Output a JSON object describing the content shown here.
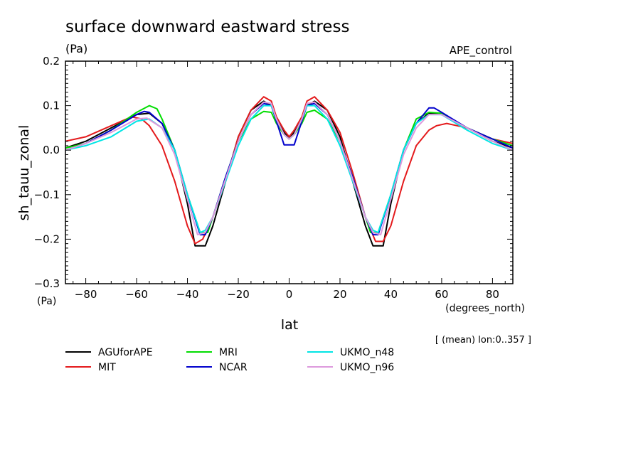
{
  "chart_data": {
    "type": "line",
    "title": "surface downward eastward stress",
    "units": "(Pa)",
    "experiment": "APE_control",
    "ylabel": "sh_tauu_zonal",
    "xlabel": "lat",
    "x_units": "(degrees_north)",
    "y_units": "(Pa)",
    "note": "[ (mean) lon:0..357 ]",
    "xlim": [
      -88,
      88
    ],
    "ylim": [
      -0.3,
      0.2
    ],
    "x_ticks": [
      -80,
      -60,
      -40,
      -20,
      0,
      20,
      40,
      60,
      80
    ],
    "x_tick_labels": [
      "−80",
      "−60",
      "−40",
      "−20",
      "0",
      "20",
      "40",
      "60",
      "80"
    ],
    "y_ticks": [
      0.2,
      0.1,
      0.0,
      -0.1,
      -0.2,
      -0.3
    ],
    "y_tick_labels": [
      "0.2",
      "0.1",
      "0.0",
      "−0.1",
      "−0.2",
      "−0.3"
    ],
    "grid": false,
    "legend_position": "bottom",
    "series": [
      {
        "name": "AGUforAPE",
        "color": "#000000",
        "x": [
          -88,
          -80,
          -70,
          -60,
          -55,
          -50,
          -45,
          -40,
          -37,
          -33,
          -30,
          -25,
          -20,
          -15,
          -10,
          -7,
          -5,
          -2,
          0,
          2,
          5,
          7,
          10,
          15,
          20,
          25,
          30,
          33,
          37,
          40,
          45,
          50,
          55,
          60,
          70,
          80,
          88
        ],
        "y": [
          0.005,
          0.02,
          0.05,
          0.08,
          0.083,
          0.06,
          0.0,
          -0.12,
          -0.215,
          -0.215,
          -0.17,
          -0.07,
          0.03,
          0.09,
          0.11,
          0.1,
          0.07,
          0.04,
          0.025,
          0.04,
          0.07,
          0.1,
          0.11,
          0.09,
          0.03,
          -0.07,
          -0.17,
          -0.215,
          -0.215,
          -0.12,
          0.0,
          0.06,
          0.083,
          0.08,
          0.05,
          0.02,
          0.005
        ]
      },
      {
        "name": "MIT",
        "color": "#e41a1c",
        "x": [
          -88,
          -80,
          -70,
          -62,
          -58,
          -55,
          -50,
          -45,
          -40,
          -37,
          -34,
          -30,
          -25,
          -20,
          -15,
          -10,
          -7,
          -5,
          -2,
          0,
          2,
          5,
          7,
          10,
          15,
          20,
          25,
          30,
          34,
          37,
          40,
          45,
          50,
          55,
          58,
          62,
          70,
          80,
          88
        ],
        "y": [
          0.02,
          0.03,
          0.055,
          0.075,
          0.07,
          0.055,
          0.01,
          -0.07,
          -0.17,
          -0.21,
          -0.2,
          -0.15,
          -0.07,
          0.03,
          0.09,
          0.12,
          0.11,
          0.075,
          0.045,
          0.03,
          0.045,
          0.075,
          0.11,
          0.12,
          0.09,
          0.04,
          -0.05,
          -0.15,
          -0.205,
          -0.205,
          -0.17,
          -0.07,
          0.01,
          0.045,
          0.055,
          0.06,
          0.05,
          0.025,
          0.015
        ]
      },
      {
        "name": "MRI",
        "color": "#00dd00",
        "x": [
          -88,
          -80,
          -70,
          -60,
          -55,
          -52,
          -50,
          -45,
          -40,
          -35,
          -32,
          -30,
          -25,
          -20,
          -15,
          -10,
          -7,
          -5,
          -2,
          0,
          2,
          5,
          7,
          10,
          15,
          20,
          25,
          30,
          32,
          35,
          40,
          45,
          50,
          55,
          60,
          70,
          80,
          88
        ],
        "y": [
          0.005,
          0.015,
          0.045,
          0.085,
          0.1,
          0.093,
          0.07,
          0.0,
          -0.1,
          -0.185,
          -0.185,
          -0.15,
          -0.06,
          0.02,
          0.07,
          0.087,
          0.085,
          0.06,
          0.035,
          0.025,
          0.035,
          0.06,
          0.085,
          0.09,
          0.07,
          0.02,
          -0.06,
          -0.15,
          -0.185,
          -0.185,
          -0.1,
          0.0,
          0.07,
          0.085,
          0.083,
          0.05,
          0.025,
          0.01
        ]
      },
      {
        "name": "NCAR",
        "color": "#0000cc",
        "x": [
          -88,
          -80,
          -70,
          -60,
          -57,
          -55,
          -50,
          -45,
          -40,
          -35,
          -33,
          -30,
          -25,
          -20,
          -15,
          -10,
          -7,
          -5,
          -2,
          0,
          2,
          5,
          7,
          10,
          15,
          20,
          25,
          30,
          33,
          35,
          40,
          45,
          50,
          55,
          57,
          60,
          70,
          80,
          88
        ],
        "y": [
          0.0,
          0.015,
          0.045,
          0.08,
          0.087,
          0.085,
          0.06,
          0.0,
          -0.1,
          -0.19,
          -0.19,
          -0.15,
          -0.06,
          0.02,
          0.08,
          0.105,
          0.1,
          0.065,
          0.012,
          0.012,
          0.012,
          0.065,
          0.1,
          0.105,
          0.08,
          0.02,
          -0.06,
          -0.15,
          -0.19,
          -0.19,
          -0.1,
          0.0,
          0.06,
          0.095,
          0.095,
          0.085,
          0.05,
          0.025,
          0.005
        ]
      },
      {
        "name": "UKMO_n48",
        "color": "#00e5e5",
        "x": [
          -88,
          -80,
          -70,
          -60,
          -55,
          -50,
          -45,
          -40,
          -35,
          -33,
          -30,
          -25,
          -20,
          -15,
          -10,
          -7,
          -5,
          -2,
          0,
          2,
          5,
          7,
          10,
          15,
          20,
          25,
          30,
          33,
          35,
          40,
          45,
          50,
          55,
          60,
          70,
          80,
          88
        ],
        "y": [
          0.0,
          0.01,
          0.03,
          0.065,
          0.07,
          0.05,
          0.0,
          -0.1,
          -0.185,
          -0.18,
          -0.15,
          -0.07,
          0.01,
          0.07,
          0.1,
          0.1,
          0.07,
          0.035,
          0.025,
          0.035,
          0.07,
          0.1,
          0.1,
          0.07,
          0.01,
          -0.07,
          -0.15,
          -0.18,
          -0.185,
          -0.1,
          0.0,
          0.06,
          0.08,
          0.08,
          0.045,
          0.015,
          0.0
        ]
      },
      {
        "name": "UKMO_n96",
        "color": "#dd99dd",
        "x": [
          -88,
          -80,
          -70,
          -60,
          -56,
          -50,
          -45,
          -40,
          -36,
          -33,
          -30,
          -25,
          -20,
          -15,
          -10,
          -7,
          -5,
          -2,
          0,
          2,
          5,
          7,
          10,
          15,
          20,
          25,
          30,
          33,
          36,
          40,
          45,
          50,
          55,
          60,
          70,
          80,
          88
        ],
        "y": [
          0.0,
          0.015,
          0.04,
          0.07,
          0.072,
          0.05,
          -0.01,
          -0.11,
          -0.19,
          -0.185,
          -0.15,
          -0.065,
          0.02,
          0.08,
          0.108,
          0.105,
          0.07,
          0.035,
          0.025,
          0.035,
          0.07,
          0.105,
          0.108,
          0.08,
          0.02,
          -0.065,
          -0.15,
          -0.185,
          -0.19,
          -0.11,
          -0.01,
          0.05,
          0.08,
          0.08,
          0.05,
          0.02,
          0.0
        ]
      }
    ]
  }
}
